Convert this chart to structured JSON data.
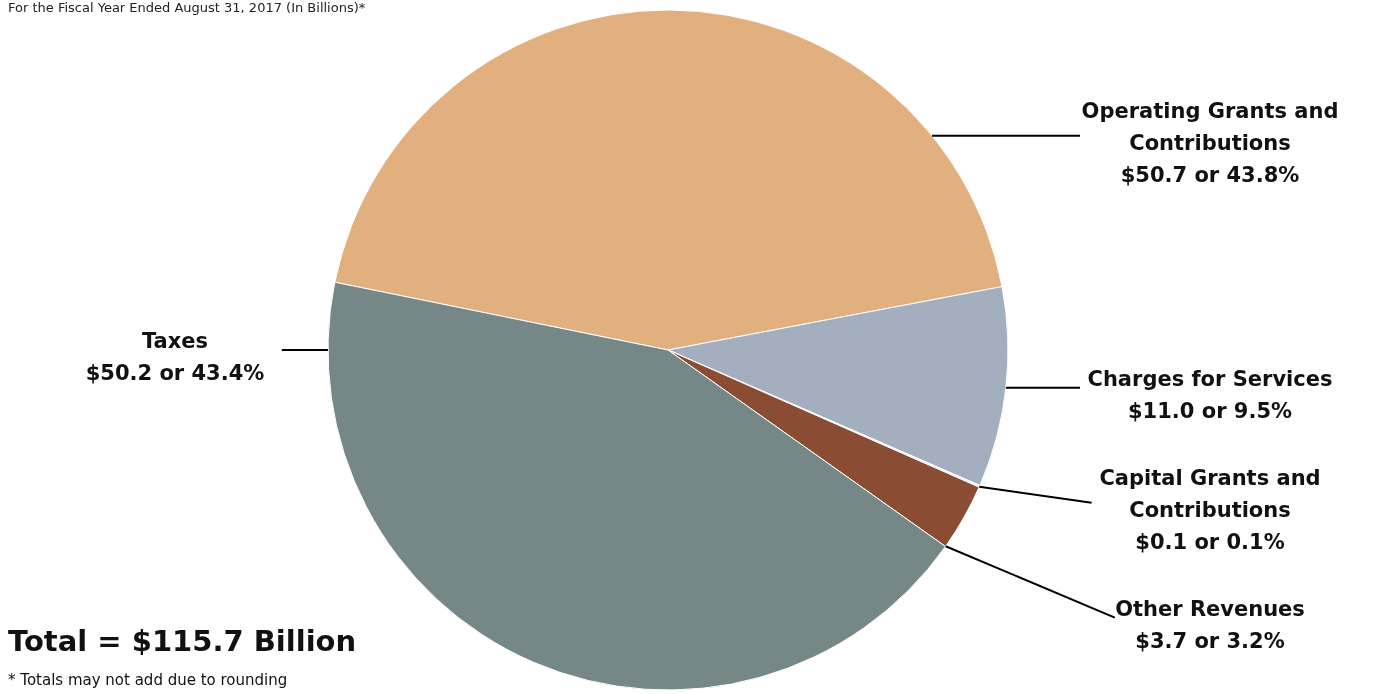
{
  "chart_data": {
    "type": "pie",
    "title": "For the Fiscal Year Ended August 31, 2017  (In Billions)*",
    "categories": [
      "Operating Grants and Contributions",
      "Charges for Services",
      "Capital Grants and Contributions",
      "Other Revenues",
      "Taxes"
    ],
    "values": [
      50.7,
      11.0,
      0.1,
      3.7,
      50.2
    ],
    "colors": [
      "#e2b07f",
      "#a3afbf",
      "#e9ecef",
      "#8b4c34",
      "#758787"
    ],
    "value_labels": [
      "$50.7  or  43.8%",
      "$11.0  or  9.5%",
      "$0.1  or  0.1%",
      "$3.7  or  3.2%",
      "$50.2  or  43.4%"
    ],
    "annotations": [
      "Total = $115.7 Billion",
      "* Totals may not add due to rounding"
    ]
  }
}
